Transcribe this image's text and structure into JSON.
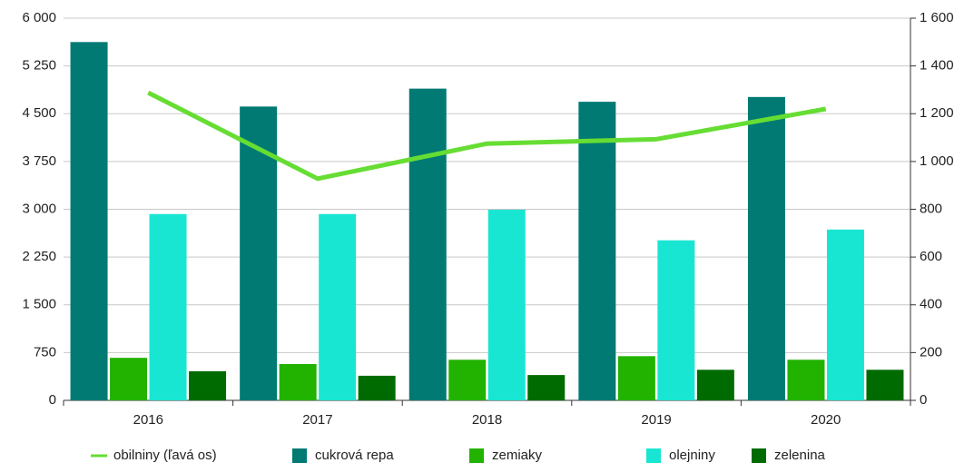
{
  "chart_data": {
    "type": "bar_line",
    "categories": [
      "2016",
      "2017",
      "2018",
      "2019",
      "2020"
    ],
    "series": [
      {
        "name": "obilniny (ľavá os)",
        "color": "#66dd33",
        "type": "line",
        "axis": "y",
        "values": [
          4830,
          3480,
          4030,
          4100,
          4575
        ]
      },
      {
        "name": "cukrová repa",
        "color": "#007a73",
        "type": "bar",
        "axis": "y2",
        "values": [
          1500,
          1230,
          1305,
          1250,
          1270
        ]
      },
      {
        "name": "zemiaky",
        "color": "#22b200",
        "type": "bar",
        "axis": "y2",
        "values": [
          178,
          152,
          170,
          185,
          170
        ]
      },
      {
        "name": "olejniny",
        "color": "#19e6d2",
        "type": "bar",
        "axis": "y2",
        "values": [
          780,
          780,
          798,
          670,
          715
        ]
      },
      {
        "name": "zelenina",
        "color": "#006b00",
        "type": "bar",
        "axis": "y2",
        "values": [
          122,
          103,
          106,
          128,
          128
        ]
      }
    ],
    "ylim": [
      0,
      6000
    ],
    "yticks": [
      0,
      750,
      {
        "value": 1500,
        "label": "1 500"
      },
      {
        "value": 2250,
        "label": "2 250"
      },
      {
        "value": 3000,
        "label": "3 000"
      },
      {
        "value": 3750,
        "label": "3 750"
      },
      {
        "value": 4500,
        "label": "4 500"
      },
      {
        "value": 5250,
        "label": "5 250"
      },
      {
        "value": 6000,
        "label": "6 000"
      }
    ],
    "y2lim": [
      0,
      1600
    ],
    "y2ticks": [
      0,
      200,
      400,
      600,
      800,
      {
        "value": 1000,
        "label": "1 000"
      },
      {
        "value": 1200,
        "label": "1 200"
      },
      {
        "value": 1400,
        "label": "1 400"
      },
      {
        "value": 1600,
        "label": "1 600"
      }
    ],
    "grid": true,
    "legend": "bottom"
  }
}
